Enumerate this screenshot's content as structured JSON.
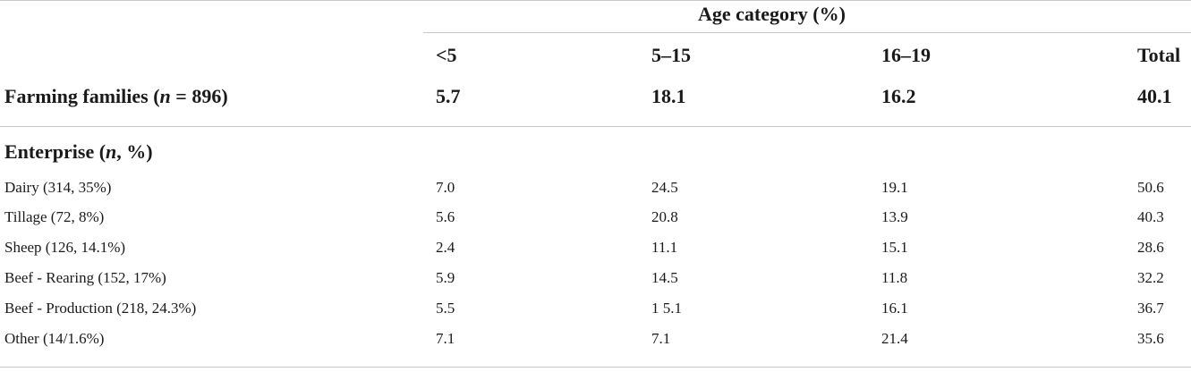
{
  "table": {
    "group_header": "Age category (%)",
    "columns": [
      "<5",
      "5–15",
      "16–19",
      "Total"
    ],
    "summary_row": {
      "label_prefix": "Farming families (",
      "label_n": "n",
      "label_suffix": " = 896)",
      "values": [
        "5.7",
        "18.1",
        "16.2",
        "40.1"
      ]
    },
    "section_header": {
      "prefix": "Enterprise (",
      "n": "n",
      "suffix": ", %)"
    },
    "rows": [
      {
        "label": "Dairy (314, 35%)",
        "values": [
          "7.0",
          "24.5",
          "19.1",
          "50.6"
        ]
      },
      {
        "label": "Tillage (72, 8%)",
        "values": [
          "5.6",
          "20.8",
          "13.9",
          "40.3"
        ]
      },
      {
        "label": "Sheep (126, 14.1%)",
        "values": [
          "2.4",
          "11.1",
          "15.1",
          "28.6"
        ]
      },
      {
        "label": "Beef - Rearing (152, 17%)",
        "values": [
          "5.9",
          "14.5",
          "11.8",
          "32.2"
        ]
      },
      {
        "label": "Beef - Production (218, 24.3%)",
        "values": [
          "5.5",
          "1 5.1",
          "16.1",
          "36.7"
        ]
      },
      {
        "label": "Other (14/1.6%)",
        "values": [
          "7.1",
          "7.1",
          "21.4",
          "35.6"
        ]
      }
    ]
  }
}
